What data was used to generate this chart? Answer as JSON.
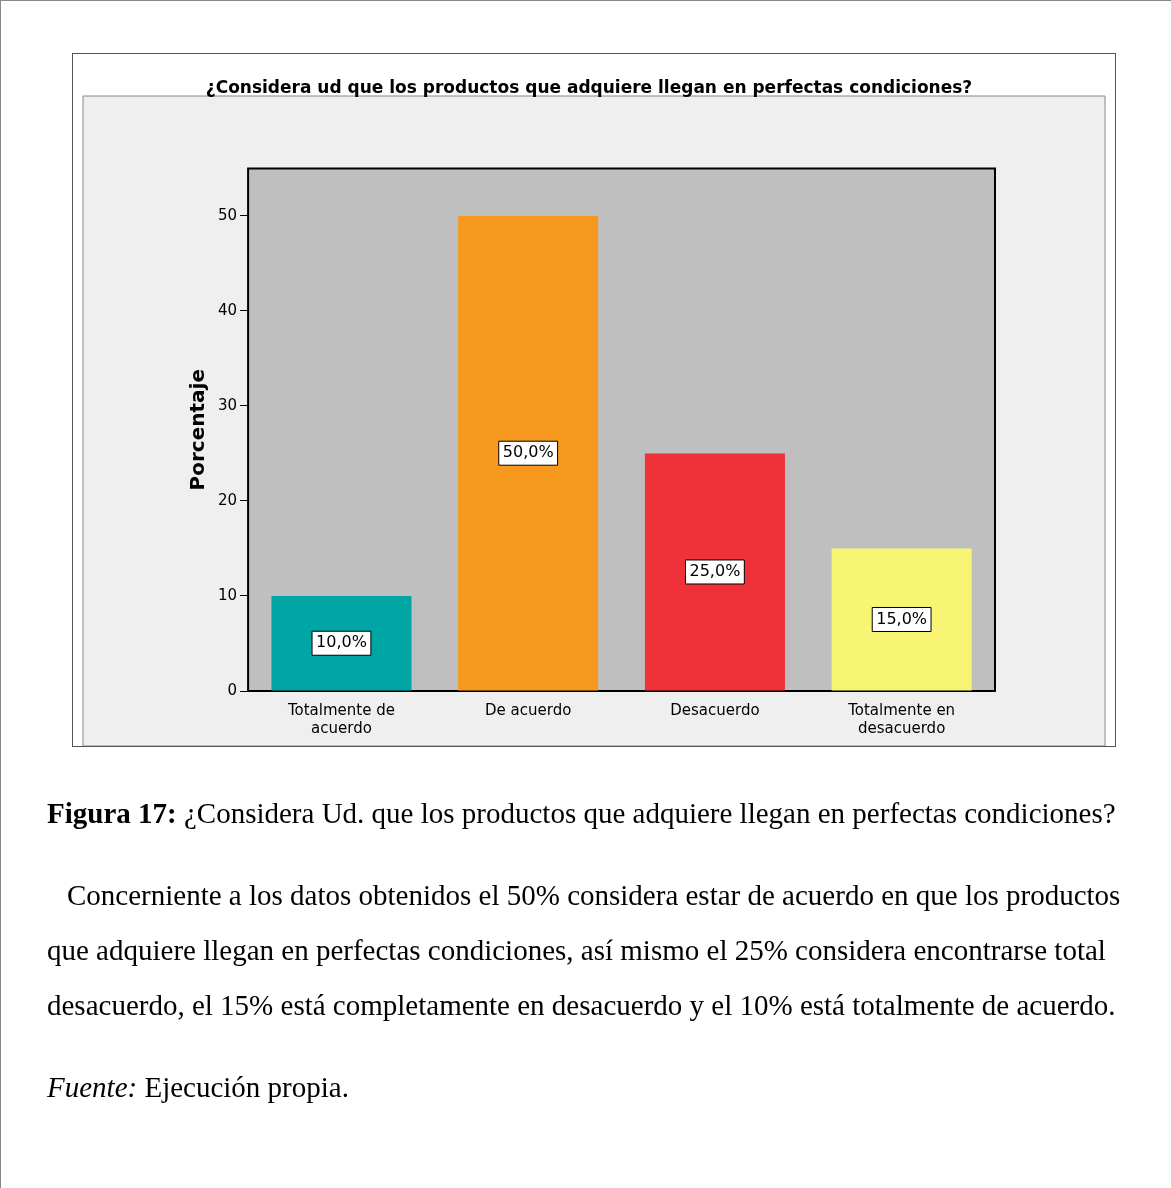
{
  "chart_data": {
    "type": "bar",
    "title": "¿Considera ud que los productos que adquiere llegan en perfectas condiciones?",
    "ylabel": "Porcentaje",
    "categories": [
      "Totalmente de acuerdo",
      "De acuerdo",
      "Desacuerdo",
      "Totalmente en desacuerdo"
    ],
    "values": [
      10,
      50,
      25,
      15
    ],
    "colors": [
      "#00a5a5",
      "#f7991f",
      "#ef3239",
      "#f8f574"
    ],
    "value_labels": [
      "10,0%",
      "50,0%",
      "25,0%",
      "15,0%"
    ],
    "ylim": [
      0,
      55
    ],
    "yticks": [
      0,
      10,
      20,
      30,
      40,
      50
    ],
    "grid": false,
    "legend": false,
    "annotations": [
      "Figura 17: ¿Considera Ud. que los productos que adquiere llegan en perfectas condiciones?",
      "Concerniente a los datos obtenidos el 50% considera estar de acuerdo en que los productos que adquiere llegan en perfectas condiciones, así mismo el 25% considera encontrarse total desacuerdo, el 15% está completamente en desacuerdo y el 10% está totalmente de acuerdo.",
      "Fuente: Ejecución propia."
    ]
  }
}
